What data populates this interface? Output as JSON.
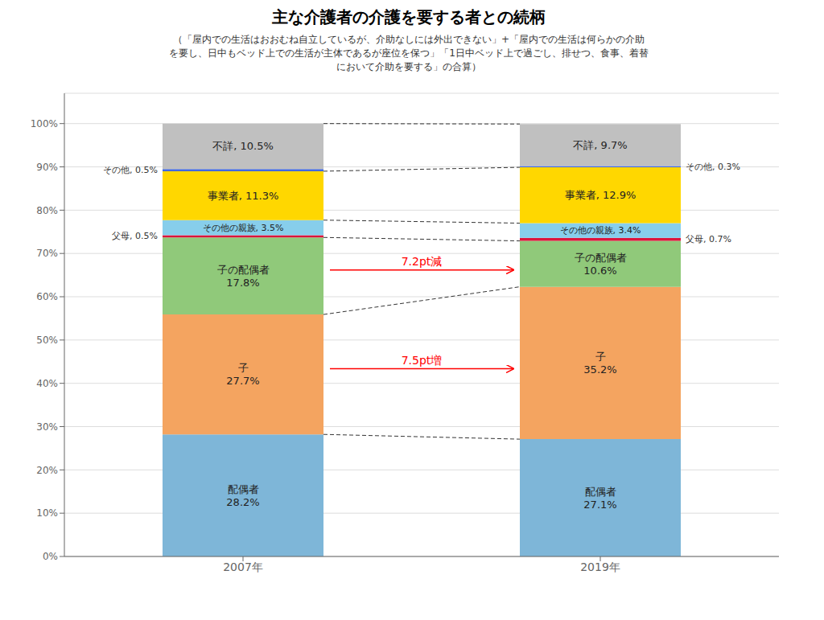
{
  "chart_data": {
    "type": "bar",
    "stacked": true,
    "title": "主な介護者の介護を要する者との続柄",
    "subtitle": [
      "（「屋内での生活はおおむね自立しているが、介助なしには外出できない」+「屋内での生活は何らかの介助",
      "を要し、日中もベッド上での生活が主体であるが座位を保つ」「1日中ベッド上で過ごし、排せつ、食事、着替",
      "において介助を要する」の合算）"
    ],
    "categories": [
      "2007年",
      "2019年"
    ],
    "series": [
      {
        "name": "配偶者",
        "color": "#7EB6D8",
        "values": [
          28.2,
          27.1
        ],
        "value_labels": [
          "配偶者\n28.2%",
          "配偶者\n27.1%"
        ]
      },
      {
        "name": "子",
        "color": "#F4A460",
        "values": [
          27.7,
          35.2
        ],
        "value_labels": [
          "子\n27.7%",
          "子\n35.2%"
        ]
      },
      {
        "name": "子の配偶者",
        "color": "#90C97A",
        "values": [
          17.8,
          10.6
        ],
        "value_labels": [
          "子の配偶者\n17.8%",
          "子の配偶者\n10.6%"
        ]
      },
      {
        "name": "父母",
        "color": "#DC143C",
        "values": [
          0.5,
          0.7
        ],
        "value_labels": [
          "父母, 0.5%",
          "父母, 0.7%"
        ]
      },
      {
        "name": "その他の親族",
        "color": "#87CEEB",
        "values": [
          3.5,
          3.4
        ],
        "value_labels": [
          "その他の親族, 3.5%",
          "その他の親族, 3.4%"
        ]
      },
      {
        "name": "事業者",
        "color": "#FFD700",
        "values": [
          11.3,
          12.9
        ],
        "value_labels": [
          "事業者, 11.3%",
          "事業者, 12.9%"
        ]
      },
      {
        "name": "その他",
        "color": "#4169E1",
        "values": [
          0.5,
          0.3
        ],
        "value_labels": [
          "その他, 0.5%",
          "その他, 0.3%"
        ]
      },
      {
        "name": "不詳",
        "color": "#C0C0C0",
        "values": [
          10.5,
          9.7
        ],
        "value_labels": [
          "不詳, 10.5%",
          "不詳, 9.7%"
        ]
      }
    ],
    "data_labels": true,
    "annotations": [
      {
        "text": "7.2pt減",
        "series": "子の配偶者",
        "color": "red"
      },
      {
        "text": "7.5pt増",
        "series": "子",
        "color": "red"
      }
    ],
    "ylim": [
      0,
      107
    ],
    "yticks": [
      {
        "value": 0,
        "label": "0%"
      },
      {
        "value": 10,
        "label": "10%"
      },
      {
        "value": 20,
        "label": "20%"
      },
      {
        "value": 30,
        "label": "30%"
      },
      {
        "value": 40,
        "label": "40%"
      },
      {
        "value": 50,
        "label": "50%"
      },
      {
        "value": 60,
        "label": "60%"
      },
      {
        "value": 70,
        "label": "70%"
      },
      {
        "value": 80,
        "label": "80%"
      },
      {
        "value": 90,
        "label": "90%"
      },
      {
        "value": 100,
        "label": "100%"
      }
    ],
    "grid": true
  }
}
